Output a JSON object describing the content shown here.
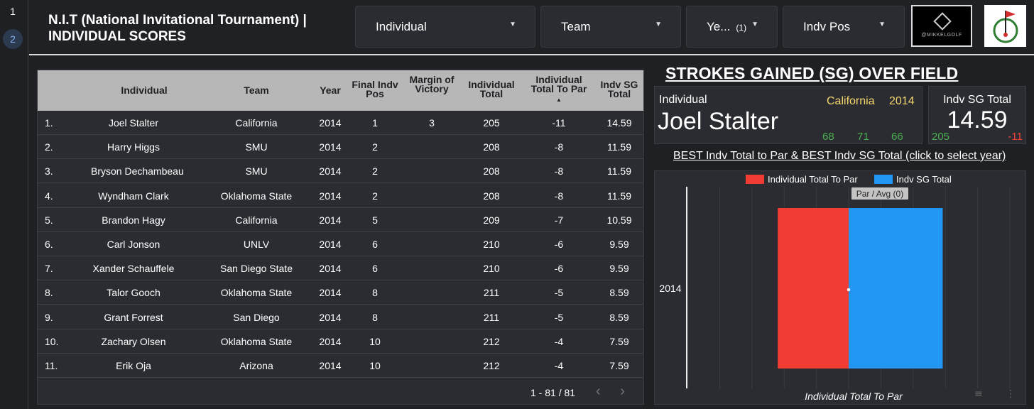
{
  "pages": [
    "1",
    "2"
  ],
  "header": {
    "title_line1": "N.I.T (National Invitational Tournament) |",
    "title_line2": "INDIVIDUAL SCORES",
    "filters": [
      {
        "label": "Individual"
      },
      {
        "label": "Team"
      },
      {
        "label": "Ye...",
        "count": "(1)"
      },
      {
        "label": "Indv Pos"
      }
    ],
    "logo_text": "@MIKKELGOLF"
  },
  "table": {
    "columns": [
      "Individual",
      "Team",
      "Year",
      "Final Indv Pos",
      "Margin of Victory",
      "Individual Total",
      "Individual Total To Par",
      "Indv SG Total"
    ],
    "sort_indicator": "▲",
    "rows": [
      {
        "n": "1.",
        "individual": "Joel Stalter",
        "team": "California",
        "year": "2014",
        "pos": "1",
        "margin": "3",
        "total": "205",
        "to_par": "-11",
        "sg": "14.59"
      },
      {
        "n": "2.",
        "individual": "Harry Higgs",
        "team": "SMU",
        "year": "2014",
        "pos": "2",
        "margin": "",
        "total": "208",
        "to_par": "-8",
        "sg": "11.59"
      },
      {
        "n": "3.",
        "individual": "Bryson Dechambeau",
        "team": "SMU",
        "year": "2014",
        "pos": "2",
        "margin": "",
        "total": "208",
        "to_par": "-8",
        "sg": "11.59"
      },
      {
        "n": "4.",
        "individual": "Wyndham Clark",
        "team": "Oklahoma State",
        "year": "2014",
        "pos": "2",
        "margin": "",
        "total": "208",
        "to_par": "-8",
        "sg": "11.59"
      },
      {
        "n": "5.",
        "individual": "Brandon Hagy",
        "team": "California",
        "year": "2014",
        "pos": "5",
        "margin": "",
        "total": "209",
        "to_par": "-7",
        "sg": "10.59"
      },
      {
        "n": "6.",
        "individual": "Carl Jonson",
        "team": "UNLV",
        "year": "2014",
        "pos": "6",
        "margin": "",
        "total": "210",
        "to_par": "-6",
        "sg": "9.59"
      },
      {
        "n": "7.",
        "individual": "Xander Schauffele",
        "team": "San Diego State",
        "year": "2014",
        "pos": "6",
        "margin": "",
        "total": "210",
        "to_par": "-6",
        "sg": "9.59"
      },
      {
        "n": "8.",
        "individual": "Talor Gooch",
        "team": "Oklahoma State",
        "year": "2014",
        "pos": "8",
        "margin": "",
        "total": "211",
        "to_par": "-5",
        "sg": "8.59"
      },
      {
        "n": "9.",
        "individual": "Grant Forrest",
        "team": "San Diego",
        "year": "2014",
        "pos": "8",
        "margin": "",
        "total": "211",
        "to_par": "-5",
        "sg": "8.59"
      },
      {
        "n": "10.",
        "individual": "Zachary Olsen",
        "team": "Oklahoma State",
        "year": "2014",
        "pos": "10",
        "margin": "",
        "total": "212",
        "to_par": "-4",
        "sg": "7.59"
      },
      {
        "n": "11.",
        "individual": "Erik Oja",
        "team": "Arizona",
        "year": "2014",
        "pos": "10",
        "margin": "",
        "total": "212",
        "to_par": "-4",
        "sg": "7.59"
      }
    ],
    "pagination": "1 - 81 / 81"
  },
  "sg_panel": {
    "title": "STROKES GAINED (SG) OVER FIELD AVERAGE",
    "card": {
      "label": "Individual",
      "name": "Joel Stalter",
      "team": "California",
      "year": "2014",
      "rounds": [
        "68",
        "71",
        "66"
      ]
    },
    "sg_card": {
      "label": "Indv SG Total",
      "value": "14.59",
      "total": "205",
      "to_par": "-11"
    },
    "chart_title": "BEST Indv Total to Par & BEST Indv SG Total (click to select year)"
  },
  "chart_data": {
    "type": "bar",
    "orientation": "horizontal",
    "categories": [
      "2014"
    ],
    "series": [
      {
        "name": "Individual Total To Par",
        "values": [
          -11
        ],
        "color": "#f03c32"
      },
      {
        "name": "Indv SG Total",
        "values": [
          14.59
        ],
        "color": "#2196f3"
      }
    ],
    "reference_line": {
      "label": "Par / Avg (0)",
      "value": 0
    },
    "xlabel": "Individual Total To Par",
    "xlim": [
      -25,
      25
    ],
    "legend": "top",
    "grid": true
  },
  "colors": {
    "background": "#1f2024",
    "card": "#2a2c31",
    "header_row": "#b7b7b7",
    "accent_gold": "#f5d76e",
    "positive": "#4caf50",
    "negative": "#f44336"
  }
}
